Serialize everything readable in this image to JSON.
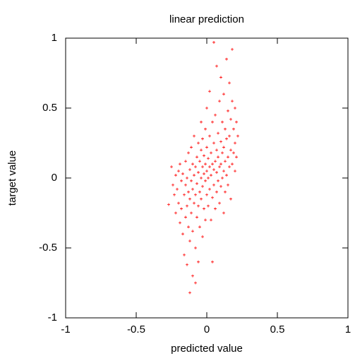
{
  "chart_data": {
    "type": "scatter",
    "title": "linear prediction",
    "x_label": "predicted value",
    "y_label": "target value",
    "xlim": [
      -1,
      1
    ],
    "ylim": [
      -1,
      1
    ],
    "xticks": [
      -1,
      -0.5,
      0,
      0.5,
      1
    ],
    "yticks": [
      -1,
      -0.5,
      0,
      0.5,
      1
    ],
    "grid": false,
    "color": "#ff0000",
    "x": [
      -0.27,
      -0.25,
      -0.24,
      -0.23,
      -0.22,
      -0.22,
      -0.21,
      -0.2,
      -0.2,
      -0.19,
      -0.19,
      -0.18,
      -0.18,
      -0.17,
      -0.17,
      -0.16,
      -0.16,
      -0.15,
      -0.15,
      -0.15,
      -0.14,
      -0.14,
      -0.14,
      -0.13,
      -0.13,
      -0.13,
      -0.12,
      -0.12,
      -0.12,
      -0.12,
      -0.11,
      -0.11,
      -0.11,
      -0.1,
      -0.1,
      -0.1,
      -0.1,
      -0.09,
      -0.09,
      -0.09,
      -0.08,
      -0.08,
      -0.08,
      -0.07,
      -0.07,
      -0.07,
      -0.06,
      -0.06,
      -0.06,
      -0.06,
      -0.05,
      -0.05,
      -0.05,
      -0.04,
      -0.04,
      -0.04,
      -0.04,
      -0.03,
      -0.03,
      -0.03,
      -0.03,
      -0.02,
      -0.02,
      -0.02,
      -0.01,
      -0.01,
      -0.01,
      -0.01,
      0,
      0,
      0,
      0,
      0.01,
      0.01,
      0.01,
      0.02,
      0.02,
      0.02,
      0.02,
      0.03,
      0.03,
      0.03,
      0.04,
      0.04,
      0.04,
      0.05,
      0.05,
      0.05,
      0.06,
      0.06,
      0.06,
      0.07,
      0.07,
      0.07,
      0.07,
      0.08,
      0.08,
      0.08,
      0.09,
      0.09,
      0.09,
      0.1,
      0.1,
      0.1,
      0.1,
      0.11,
      0.11,
      0.11,
      0.12,
      0.12,
      0.12,
      0.12,
      0.13,
      0.13,
      0.13,
      0.14,
      0.14,
      0.14,
      0.15,
      0.15,
      0.15,
      0.16,
      0.16,
      0.16,
      0.17,
      0.17,
      0.17,
      0.18,
      0.18,
      0.18,
      0.19,
      0.19,
      0.2,
      0.2,
      0.2,
      0.21,
      0.21,
      0.22,
      0.05,
      0.04,
      -0.08
    ],
    "y": [
      -0.19,
      0.08,
      -0.05,
      -0.12,
      0.02,
      -0.25,
      -0.08,
      0.05,
      -0.18,
      -0.32,
      0.1,
      -0.02,
      -0.22,
      -0.4,
      0.03,
      -0.12,
      -0.55,
      -0.28,
      0.12,
      -0.05,
      -0.62,
      -0.2,
      0,
      -0.35,
      -0.1,
      0.18,
      -0.82,
      -0.45,
      -0.15,
      0.06,
      -0.25,
      -0.02,
      0.22,
      -0.7,
      -0.38,
      -0.08,
      0.1,
      -0.18,
      0.02,
      0.3,
      -0.5,
      -0.12,
      0.08,
      -0.28,
      -0.04,
      0.15,
      -0.6,
      -0.2,
      0.04,
      0.25,
      -0.35,
      -0.1,
      0.12,
      -0.15,
      0,
      0.2,
      0.4,
      -0.42,
      -0.06,
      0.08,
      0.28,
      -0.22,
      0.03,
      0.16,
      -0.3,
      -0.02,
      0.1,
      0.35,
      -0.12,
      0.05,
      0.22,
      0.5,
      -0.2,
      0,
      0.14,
      -0.08,
      0.08,
      0.3,
      0.62,
      -0.3,
      0.02,
      0.18,
      -0.14,
      0.1,
      0.4,
      -0.05,
      0.06,
      0.25,
      -0.22,
      0.12,
      0.45,
      -0.1,
      0.04,
      0.2,
      0.8,
      -0.02,
      0.15,
      0.32,
      -0.18,
      0.08,
      0.55,
      -0.06,
      0.1,
      0.26,
      0.72,
      0,
      0.18,
      0.4,
      -0.25,
      0.05,
      0.22,
      0.6,
      -0.1,
      0.12,
      0.35,
      0.02,
      0.28,
      0.85,
      -0.05,
      0.15,
      0.48,
      0.08,
      0.3,
      0.68,
      -0.15,
      0.2,
      0.42,
      0.1,
      0.55,
      0.92,
      0.18,
      0.35,
      0.05,
      0.25,
      0.5,
      0.15,
      0.4,
      0.3,
      0.97,
      -0.6,
      -0.75
    ]
  }
}
